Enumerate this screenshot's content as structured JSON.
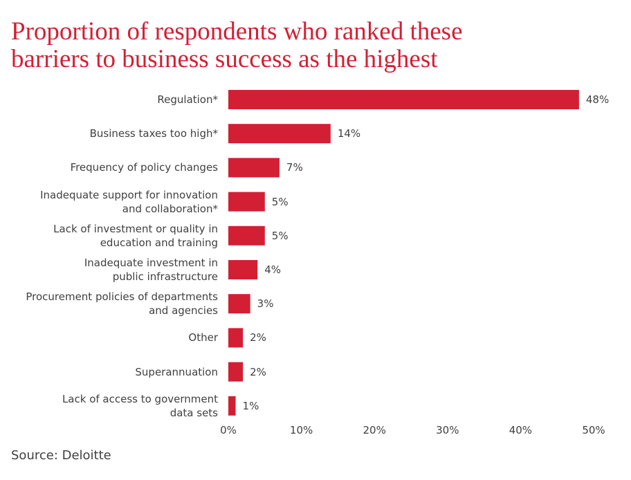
{
  "chart_data": {
    "type": "bar",
    "orientation": "horizontal",
    "title": "Proportion of respondents who ranked these\nbarriers to business success as the highest",
    "categories": [
      "Regulation*",
      "Business taxes too high*",
      "Frequency of policy changes",
      "Inadequate support for innovation\nand collaboration*",
      "Lack of investment or quality in\neducation and training",
      "Inadequate investment in\npublic infrastructure",
      "Procurement policies of departments\nand agencies",
      "Other",
      "Superannuation",
      "Lack of access to government\ndata sets"
    ],
    "values": [
      48,
      14,
      7,
      5,
      5,
      4,
      3,
      2,
      2,
      1
    ],
    "value_labels": [
      "48%",
      "14%",
      "7%",
      "5%",
      "5%",
      "4%",
      "3%",
      "2%",
      "2%",
      "1%"
    ],
    "color": "#d31f34",
    "xlim": [
      0,
      50
    ],
    "xticks": [
      {
        "value": 0,
        "label": "0%"
      },
      {
        "value": 10,
        "label": "10%"
      },
      {
        "value": 20,
        "label": "20%"
      },
      {
        "value": 30,
        "label": "30%"
      },
      {
        "value": 40,
        "label": "40%"
      },
      {
        "value": 50,
        "label": "50%"
      }
    ],
    "grid": false,
    "source": "Source:  Deloitte"
  }
}
